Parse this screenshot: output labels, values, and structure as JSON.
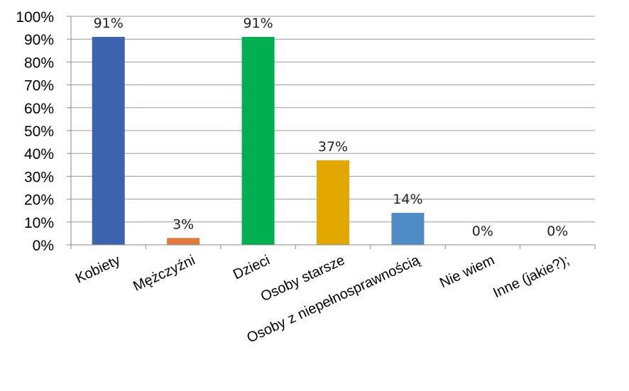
{
  "chart_data": {
    "type": "bar",
    "categories": [
      "Kobiety",
      "Mężczyźni",
      "Dzieci",
      "Osoby starsze",
      "Osoby z niepełnosprawnością",
      "Nie wiem",
      "Inne (jakie?);"
    ],
    "values": [
      91,
      3,
      91,
      37,
      14,
      0,
      0
    ],
    "value_labels": [
      "91%",
      "3%",
      "91%",
      "37%",
      "14%",
      "0%",
      "0%"
    ],
    "colors": [
      "#3c63ad",
      "#e07b39",
      "#00b050",
      "#e3a800",
      "#4f8bc4",
      "#4f8bc4",
      "#4f8bc4"
    ],
    "ylim": [
      0,
      100
    ],
    "y_ticks": [
      0,
      10,
      20,
      30,
      40,
      50,
      60,
      70,
      80,
      90,
      100
    ],
    "y_tick_labels": [
      "0%",
      "10%",
      "20%",
      "30%",
      "40%",
      "50%",
      "60%",
      "70%",
      "80%",
      "90%",
      "100%"
    ],
    "title": "",
    "xlabel": "",
    "ylabel": "",
    "grid": true,
    "legend": "none"
  }
}
